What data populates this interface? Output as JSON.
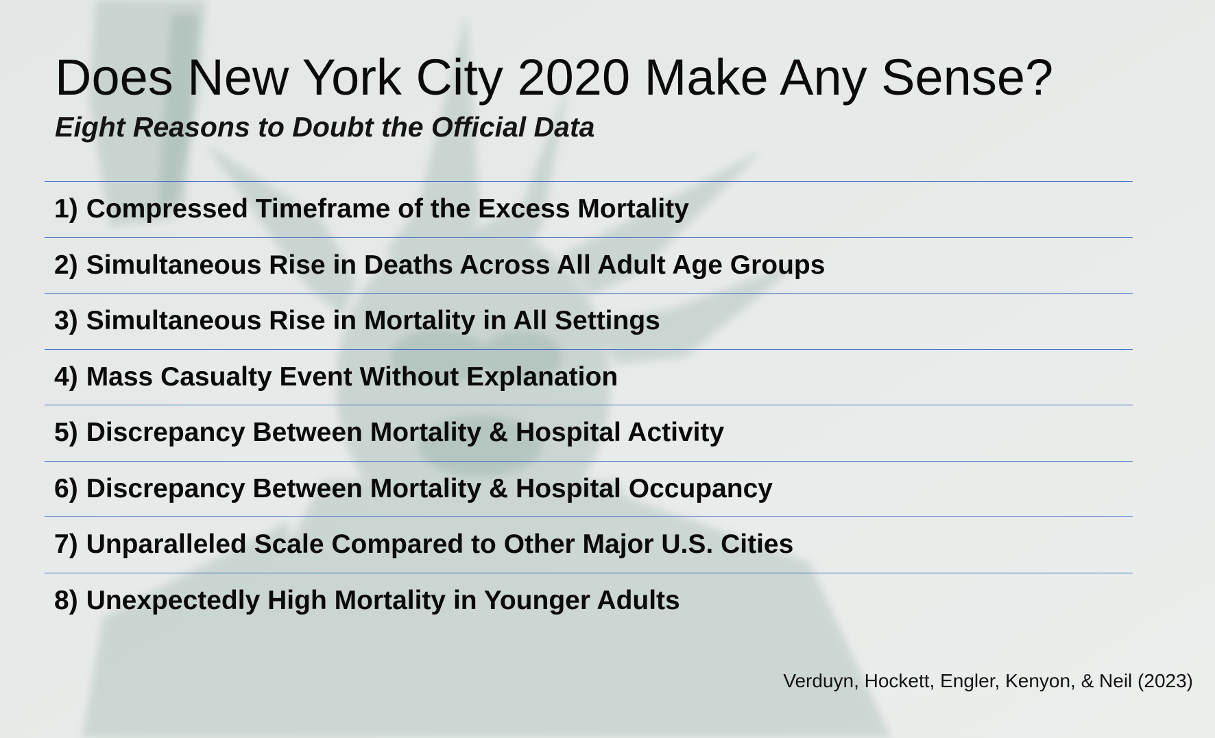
{
  "slide": {
    "title": "Does New York City 2020 Make Any Sense?",
    "subtitle": "Eight Reasons to Doubt the Official Data",
    "reasons": [
      {
        "number": "1)",
        "text": "Compressed Timeframe of the Excess Mortality"
      },
      {
        "number": "2)",
        "text": "Simultaneous Rise in Deaths Across All Adult Age Groups"
      },
      {
        "number": "3)",
        "text": "Simultaneous Rise in Mortality in All Settings"
      },
      {
        "number": "4)",
        "text": "Mass Casualty Event Without Explanation"
      },
      {
        "number": "5)",
        "text": "Discrepancy Between Mortality & Hospital Activity"
      },
      {
        "number": "6)",
        "text": "Discrepancy Between Mortality & Hospital Occupancy"
      },
      {
        "number": "7)",
        "text": "Unparalleled Scale Compared to Other Major U.S. Cities"
      },
      {
        "number": "8)",
        "text": "Unexpectedly High Mortality in Younger Adults"
      }
    ],
    "citation": "Verduyn, Hockett, Engler, Kenyon, & Neil (2023)"
  },
  "colors": {
    "background": "#e9ecea",
    "divider": "#4472c4",
    "text": "#0a0a0a",
    "statue": "#b7c9c3"
  },
  "background_image": "statue-of-liberty-crown"
}
